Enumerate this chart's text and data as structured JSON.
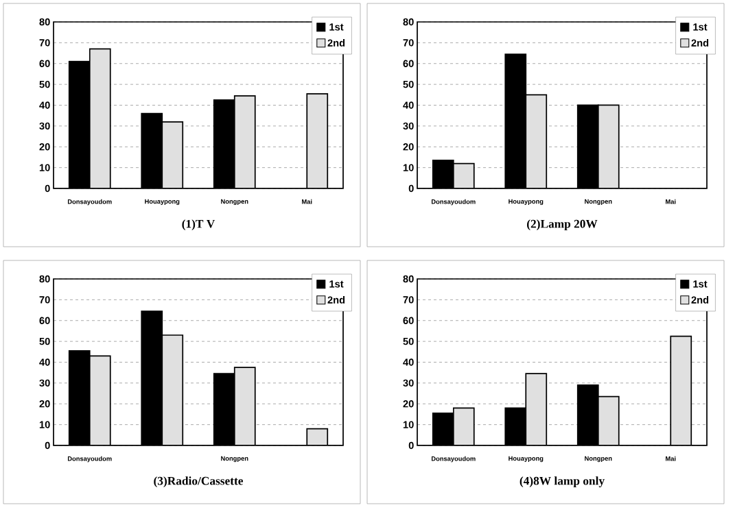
{
  "chart_data": [
    {
      "type": "bar",
      "title": "(1)T V",
      "categories": [
        "Donsayoudom",
        "Houaypong",
        "Nongpen",
        "Mai"
      ],
      "series": [
        {
          "name": "1st",
          "color": "#000000",
          "values": [
            61,
            36,
            42.5,
            null
          ]
        },
        {
          "name": "2nd",
          "color": "#e0e0e0",
          "values": [
            67,
            32,
            44.5,
            45.5
          ]
        }
      ],
      "ylim": [
        0,
        80
      ],
      "yticks": [
        0,
        10,
        20,
        30,
        40,
        50,
        60,
        70,
        80
      ],
      "grid": "y",
      "legend": "top right"
    },
    {
      "type": "bar",
      "title": "(2)Lamp 20W",
      "categories": [
        "Donsayoudom",
        "Houaypong",
        "Nongpen",
        "Mai"
      ],
      "series": [
        {
          "name": "1st",
          "color": "#000000",
          "values": [
            13.5,
            64.5,
            40,
            null
          ]
        },
        {
          "name": "2nd",
          "color": "#e0e0e0",
          "values": [
            12,
            45,
            40,
            null
          ]
        }
      ],
      "ylim": [
        0,
        80
      ],
      "yticks": [
        0,
        10,
        20,
        30,
        40,
        50,
        60,
        70,
        80
      ],
      "grid": "y",
      "legend": "top right"
    },
    {
      "type": "bar",
      "title": "(3)Radio/Cassette",
      "categories": [
        "Donsayoudom",
        null,
        "Nongpen",
        null
      ],
      "series": [
        {
          "name": "1st",
          "color": "#000000",
          "values": [
            45.5,
            64.5,
            34.5,
            null
          ]
        },
        {
          "name": "2nd",
          "color": "#e0e0e0",
          "values": [
            43,
            53,
            37.5,
            8
          ]
        }
      ],
      "ylim": [
        0,
        80
      ],
      "yticks": [
        0,
        10,
        20,
        30,
        40,
        50,
        60,
        70,
        80
      ],
      "grid": "y",
      "legend": "top right"
    },
    {
      "type": "bar",
      "title": "(4)8W lamp only",
      "categories": [
        "Donsayoudom",
        "Houaypong",
        "Nongpen",
        "Mai"
      ],
      "series": [
        {
          "name": "1st",
          "color": "#000000",
          "values": [
            15.5,
            18,
            29,
            null
          ]
        },
        {
          "name": "2nd",
          "color": "#e0e0e0",
          "values": [
            18,
            34.5,
            23.5,
            52.5
          ]
        }
      ],
      "ylim": [
        0,
        80
      ],
      "yticks": [
        0,
        10,
        20,
        30,
        40,
        50,
        60,
        70,
        80
      ],
      "grid": "y",
      "legend": "top right"
    }
  ]
}
